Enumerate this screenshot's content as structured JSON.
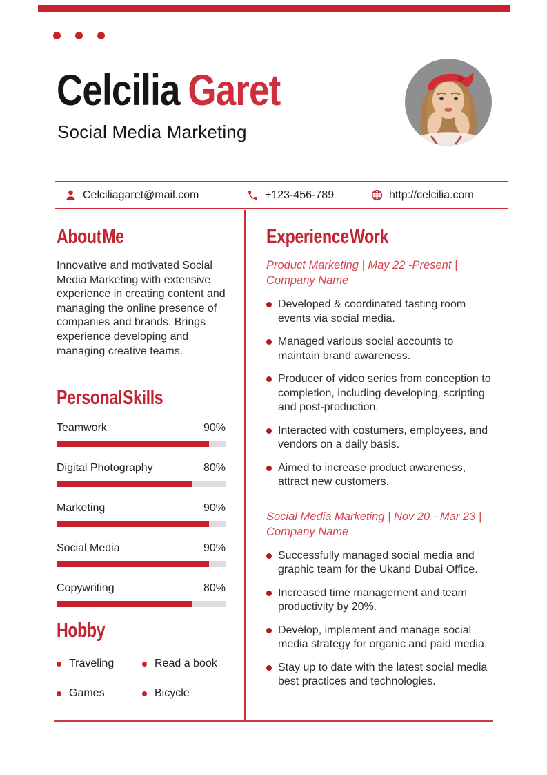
{
  "header": {
    "first_name": "Celcilia",
    "last_name": "Garet",
    "subtitle": "Social Media Marketing"
  },
  "contact": {
    "email": "Celciliagaret@mail.com",
    "phone": "+123-456-789",
    "website": "http://celcilia.com",
    "icons": [
      "person-icon",
      "phone-icon",
      "globe-icon"
    ]
  },
  "about": {
    "heading": "About Me",
    "text": "Innovative and motivated Social Media Marketing with extensive experience in creating content and managing the online presence of companies and brands. Brings experience developing and managing creative teams."
  },
  "skills": {
    "heading": "Personal Skills",
    "items": [
      {
        "label": "Teamwork",
        "percent": "90%",
        "value": 90
      },
      {
        "label": "Digital Photography",
        "percent": "80%",
        "value": 80
      },
      {
        "label": "Marketing",
        "percent": "90%",
        "value": 90
      },
      {
        "label": "Social Media",
        "percent": "90%",
        "value": 90
      },
      {
        "label": "Copywriting",
        "percent": "80%",
        "value": 80
      }
    ]
  },
  "hobby": {
    "heading": "Hobby",
    "items": [
      "Traveling",
      "Read a book",
      "Games",
      "Bicycle"
    ]
  },
  "experience": {
    "heading": "Experience Work",
    "jobs": [
      {
        "title": "Product Marketing | May 22 -Present | Company Name",
        "bullets": [
          "Developed & coordinated tasting room events via social media.",
          "Managed various social accounts to maintain brand awareness.",
          "Producer of video series from conception to completion, including developing, scripting and post-production.",
          "Interacted with costumers, employees, and vendors on a daily basis.",
          "Aimed to increase product awareness, attract new customers."
        ]
      },
      {
        "title": "Social Media Marketing | Nov 20 - Mar 23 | Company Name",
        "bullets": [
          "Successfully managed social media and graphic team for the Ukand Dubai Office.",
          "Increased time management and team productivity by 20%.",
          "Develop, implement and manage social media strategy for organic and paid media.",
          "Stay up to date with the latest social media best practices and technologies."
        ]
      }
    ]
  },
  "colors": {
    "accent": "#c4232b",
    "heading_red": "#c22531",
    "job_title_red": "#d8414f",
    "bullet_red": "#a81f29",
    "bar_red": "#c5212a",
    "bar_track": "#dcdcdc",
    "line_red": "#cb2e39",
    "text_dark": "#2d2d2d"
  }
}
